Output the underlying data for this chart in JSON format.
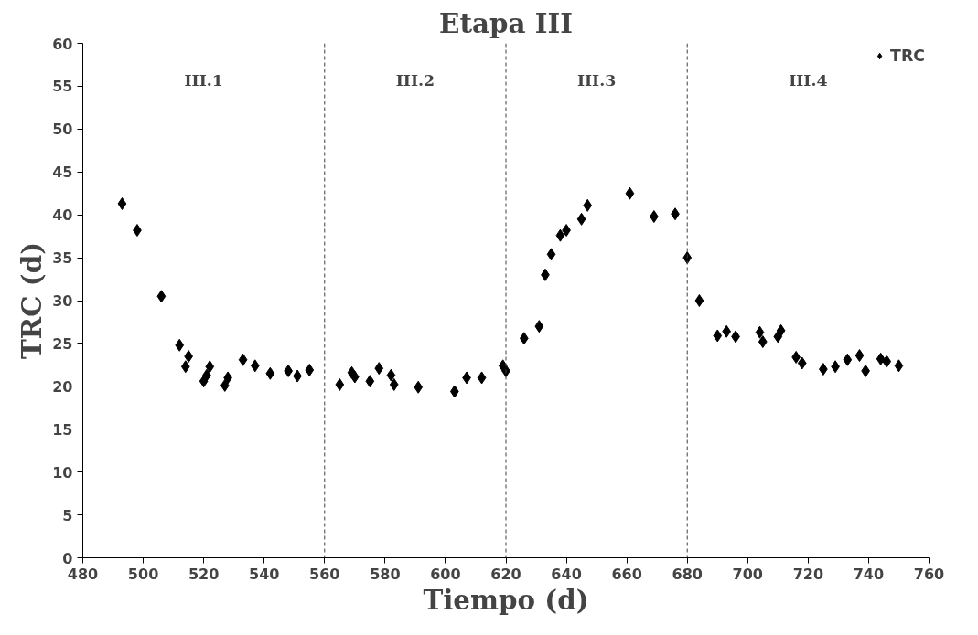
{
  "chart_data": {
    "type": "scatter",
    "title": "Etapa III",
    "xlabel": "Tiempo (d)",
    "ylabel": "TRC (d)",
    "xlim": [
      480,
      760
    ],
    "xticks": [
      480,
      500,
      520,
      540,
      560,
      580,
      600,
      620,
      640,
      660,
      680,
      700,
      720,
      740,
      760
    ],
    "ylim": [
      0,
      60
    ],
    "yticks": [
      0,
      5,
      10,
      15,
      20,
      25,
      30,
      35,
      40,
      45,
      50,
      55,
      60
    ],
    "grid": false,
    "legend": "top right",
    "marker": "diamond",
    "series": [
      {
        "name": "TRC",
        "color": "#000000",
        "x": [
          493,
          498,
          506,
          512,
          514,
          515,
          520,
          521,
          522,
          527,
          528,
          533,
          537,
          542,
          548,
          551,
          555,
          565,
          569,
          570,
          575,
          578,
          582,
          583,
          591,
          603,
          607,
          612,
          619,
          620,
          626,
          631,
          633,
          635,
          638,
          640,
          645,
          647,
          661,
          669,
          676,
          680,
          684,
          690,
          693,
          696,
          704,
          705,
          710,
          711,
          716,
          718,
          725,
          729,
          733,
          737,
          739,
          744,
          746,
          750
        ],
        "values": [
          41.3,
          38.2,
          30.5,
          24.8,
          22.3,
          23.5,
          20.6,
          21.3,
          22.3,
          20.1,
          21.0,
          23.1,
          22.4,
          21.5,
          21.8,
          21.2,
          21.9,
          20.2,
          21.6,
          21.1,
          20.6,
          22.1,
          21.3,
          20.2,
          19.9,
          19.4,
          21.0,
          21.0,
          22.4,
          21.8,
          25.6,
          27.0,
          33.0,
          35.4,
          37.6,
          38.2,
          39.5,
          41.1,
          42.5,
          39.8,
          40.1,
          35.0,
          30.0,
          25.9,
          26.4,
          25.8,
          26.3,
          25.2,
          25.8,
          26.5,
          23.4,
          22.7,
          22.0,
          22.3,
          23.1,
          23.6,
          21.8,
          23.2,
          22.9,
          22.4
        ]
      }
    ],
    "ref_lines": [
      {
        "axis": "x",
        "value": 560,
        "color": "#404040",
        "line_style": "dashed"
      },
      {
        "axis": "x",
        "value": 620,
        "color": "#404040",
        "line_style": "dashed"
      },
      {
        "axis": "x",
        "value": 680,
        "color": "#404040",
        "line_style": "dashed"
      }
    ],
    "annotations": [
      "III.1",
      "III.2",
      "III.3",
      "III.4"
    ]
  }
}
